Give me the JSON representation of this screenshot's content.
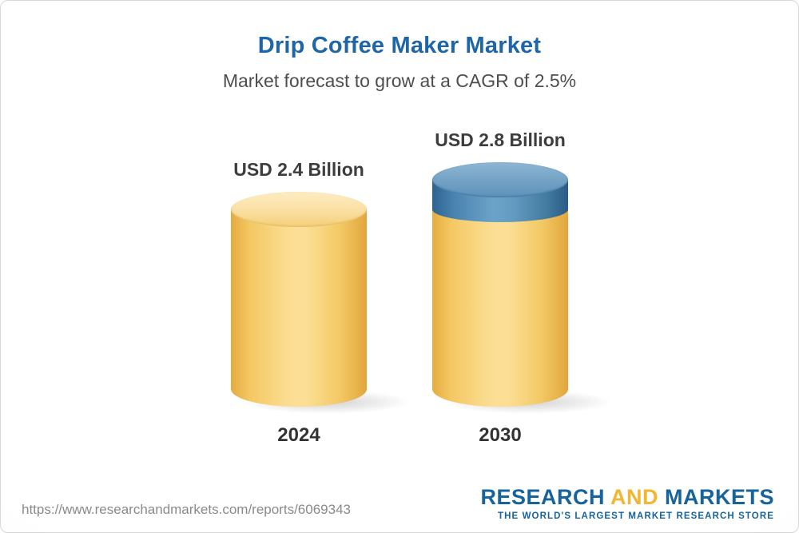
{
  "header": {
    "title": "Drip Coffee Maker Market",
    "subtitle": "Market forecast to grow at a CAGR of 2.5%"
  },
  "chart_data": {
    "type": "bar",
    "title": "Drip Coffee Maker Market",
    "subtitle": "Market forecast to grow at a CAGR of 2.5%",
    "categories": [
      "2024",
      "2030"
    ],
    "values": [
      2.4,
      2.8
    ],
    "unit": "USD Billion",
    "value_labels": [
      "USD 2.4 Billion",
      "USD 2.8 Billion"
    ],
    "cagr": "2.5%",
    "ylim": [
      0,
      3
    ],
    "legend": "none",
    "grid": "off",
    "colors": {
      "bar_body": "#F7CE6F",
      "bar_top": "#FBE3A6",
      "growth_cap": "#5D92BB",
      "title": "#1F66A9",
      "subtitle": "#4D4D4D"
    }
  },
  "footer": {
    "url": "https://www.researchandmarkets.com/reports/6069343",
    "logo": {
      "part1": "RESEARCH",
      "part2": "AND",
      "part3": "MARKETS",
      "tagline": "THE WORLD'S LARGEST MARKET RESEARCH STORE"
    }
  }
}
